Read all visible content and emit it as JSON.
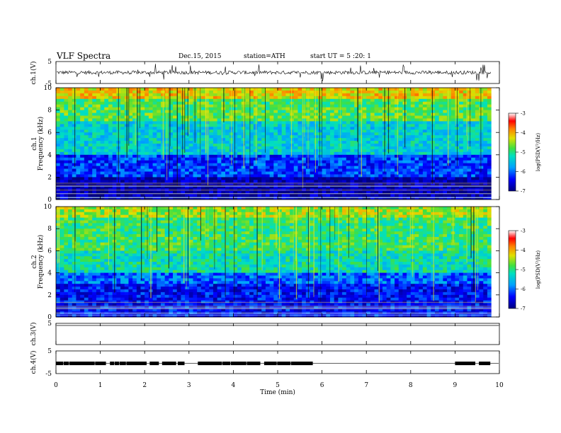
{
  "header": {
    "title": "VLF  Spectra",
    "date": "Dec.15, 2015",
    "station": "station=ATH",
    "start": "start  UT  =   5  :20: 1"
  },
  "chart_data": [
    {
      "type": "line",
      "name": "waveform-ch1",
      "ylabel": "ch.1(V)",
      "ylim": [
        -5,
        5
      ],
      "yticks": [
        "5",
        "-5"
      ],
      "x_range_min": [
        0,
        9.82
      ],
      "note_values": "dense noisy waveform near 0 V with spikes up to about ±4 V"
    },
    {
      "type": "heatmap",
      "name": "spectrogram-ch1",
      "ylabel": "ch.1\nFrequency  (kHz)",
      "ylim": [
        0,
        10
      ],
      "yticks": [
        "0",
        "2",
        "4",
        "6",
        "8",
        "10"
      ],
      "colorbar": {
        "label": "log(PSD(V²/Hz)",
        "range": [
          -7,
          -3
        ],
        "ticks": [
          "-3",
          "-4",
          "-5",
          "-6",
          "-7"
        ]
      },
      "bands": [
        {
          "from_khz": 0,
          "to_khz": 2,
          "log_psd": -6.8
        },
        {
          "from_khz": 2,
          "to_khz": 4,
          "log_psd": -6.2
        },
        {
          "from_khz": 4,
          "to_khz": 7,
          "log_psd": -5.4
        },
        {
          "from_khz": 7,
          "to_khz": 9,
          "log_psd": -4.8
        },
        {
          "from_khz": 9,
          "to_khz": 10,
          "log_psd": -4.2
        }
      ]
    },
    {
      "type": "heatmap",
      "name": "spectrogram-ch2",
      "ylabel": "ch.2\nFrequency  (kHz)",
      "ylim": [
        0,
        10
      ],
      "yticks": [
        "0",
        "2",
        "4",
        "6",
        "8",
        "10"
      ],
      "colorbar": {
        "label": "log(PSD(V²/Hz)",
        "range": [
          -7,
          -3
        ],
        "ticks": [
          "-3",
          "-4",
          "-5",
          "-6",
          "-7"
        ]
      },
      "bands": [
        {
          "from_khz": 0,
          "to_khz": 3,
          "log_psd": -6.4
        },
        {
          "from_khz": 3,
          "to_khz": 4,
          "log_psd": -6.0
        },
        {
          "from_khz": 4,
          "to_khz": 6,
          "log_psd": -5.2
        },
        {
          "from_khz": 6,
          "to_khz": 9,
          "log_psd": -4.9
        },
        {
          "from_khz": 9,
          "to_khz": 10,
          "log_psd": -4.5
        }
      ]
    },
    {
      "type": "line",
      "name": "waveform-ch3",
      "ylabel": "ch.3(V)",
      "ylim": [
        -5,
        5
      ],
      "yticks": [
        "5"
      ],
      "note_values": "flat near +5 V"
    },
    {
      "type": "line",
      "name": "waveform-ch4",
      "ylabel": "ch.4(V)",
      "ylim": [
        -5,
        5
      ],
      "yticks": [
        "5",
        "-5"
      ],
      "segments_min": [
        [
          0,
          2.9
        ],
        [
          3.2,
          5.8
        ],
        [
          9.0,
          9.8
        ]
      ],
      "level_v": -0.5
    }
  ],
  "xaxis": {
    "label": "Time  (min)",
    "ticks": [
      "0",
      "1",
      "2",
      "3",
      "4",
      "5",
      "6",
      "7",
      "8",
      "9",
      "10"
    ],
    "xlim": [
      0,
      10
    ]
  }
}
